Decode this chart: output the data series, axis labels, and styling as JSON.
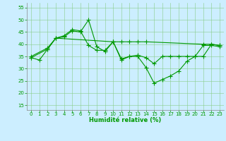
{
  "xlabel": "Humidité relative (%)",
  "background_color": "#cceeff",
  "grid_color": "#88cc88",
  "line_color": "#009900",
  "xlim": [
    -0.5,
    23.5
  ],
  "ylim": [
    13,
    57
  ],
  "yticks": [
    15,
    20,
    25,
    30,
    35,
    40,
    45,
    50,
    55
  ],
  "xticks": [
    0,
    1,
    2,
    3,
    4,
    5,
    6,
    7,
    8,
    9,
    10,
    11,
    12,
    13,
    14,
    15,
    16,
    17,
    18,
    19,
    20,
    21,
    22,
    23
  ],
  "line1_x": [
    0,
    1,
    2,
    3,
    4,
    5,
    6,
    7,
    8,
    9,
    10,
    11,
    12,
    13,
    14,
    15,
    16,
    17,
    18,
    19,
    20,
    21,
    22,
    23
  ],
  "line1_y": [
    34.5,
    33.5,
    38,
    42.5,
    43,
    45.5,
    45,
    50,
    39,
    37,
    41,
    33.5,
    35,
    35,
    30.5,
    24,
    25.5,
    27,
    29,
    33,
    35,
    39.5,
    39.5,
    39
  ],
  "line2_x": [
    0,
    2,
    3,
    4,
    5,
    6,
    7,
    8,
    9,
    10,
    11,
    12,
    13,
    14,
    21,
    22,
    23
  ],
  "line2_y": [
    35,
    38.5,
    42.5,
    43.5,
    46,
    45.5,
    39.5,
    37.5,
    37.5,
    41,
    41,
    41,
    41,
    41,
    40,
    40,
    39.5
  ],
  "line3_x": [
    0,
    2,
    3,
    10,
    11,
    12,
    13,
    14,
    15,
    16,
    17,
    18,
    19,
    20,
    21,
    22,
    23
  ],
  "line3_y": [
    34.5,
    38,
    42.5,
    41,
    34,
    35,
    35.5,
    34.5,
    32,
    35,
    35,
    35,
    35,
    35,
    35,
    40,
    39.5
  ],
  "tick_fontsize": 5,
  "xlabel_fontsize": 6,
  "marker_size": 2,
  "linewidth": 0.8
}
